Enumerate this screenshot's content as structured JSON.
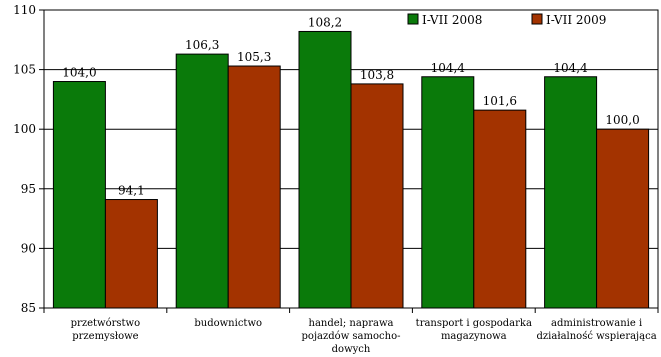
{
  "chart_data": {
    "type": "bar",
    "categories": [
      [
        "przetwórstwo",
        "przemysłowe"
      ],
      [
        "budownictwo"
      ],
      [
        "handel; naprawa",
        "pojazdów samocho-",
        "dowych"
      ],
      [
        "transport i gospodarka",
        "magazynowa"
      ],
      [
        "administrowanie i",
        "działalność wspierająca"
      ]
    ],
    "series": [
      {
        "name": "I-VII 2008",
        "color": "#0A7A0A",
        "values": [
          104.0,
          106.3,
          108.2,
          104.4,
          104.4
        ],
        "labels": [
          "104,0",
          "106,3",
          "108,2",
          "104,4",
          "104,4"
        ]
      },
      {
        "name": "I-VII 2009",
        "color": "#A33300",
        "values": [
          94.1,
          105.3,
          103.8,
          101.6,
          100.0
        ],
        "labels": [
          "94,1",
          "105,3",
          "103,8",
          "101,6",
          "100,0"
        ]
      }
    ],
    "ylim": [
      85,
      110
    ],
    "yticks": [
      85,
      90,
      95,
      100,
      105,
      110
    ],
    "grid": true,
    "legend_position": "top-right"
  }
}
